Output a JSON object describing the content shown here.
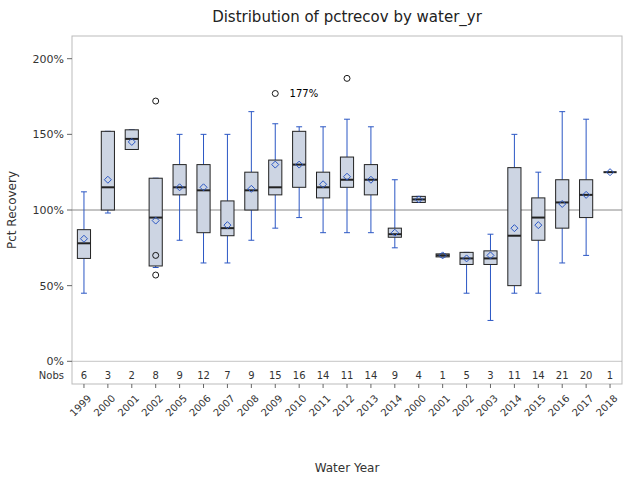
{
  "chart_data": {
    "type": "box",
    "title": "Distribution of pctrecov by water_yr",
    "x_label": "Water Year",
    "y_label": "Pct Recovery",
    "categories": [
      "1999",
      "2000",
      "2001",
      "2002",
      "2005",
      "2006",
      "2007",
      "2008",
      "2009",
      "2010",
      "2011",
      "2012",
      "2013",
      "2014",
      "2000",
      "2001",
      "2002",
      "2003",
      "2014",
      "2015",
      "2016",
      "2017",
      "2018"
    ],
    "boxes": [
      {
        "q1": 68,
        "median": 78,
        "q3": 87,
        "mean": 81,
        "whislo": 45,
        "whishi": 112,
        "fliers": []
      },
      {
        "q1": 100,
        "median": 115,
        "q3": 152,
        "mean": 120,
        "whislo": 98,
        "whishi": 152,
        "fliers": []
      },
      {
        "q1": 140,
        "median": 147,
        "q3": 153,
        "mean": 145,
        "whislo": 140,
        "whishi": 153,
        "fliers": []
      },
      {
        "q1": 63,
        "median": 95,
        "q3": 121,
        "mean": 93,
        "whislo": 62,
        "whishi": 121,
        "fliers": [
          172,
          70,
          57
        ]
      },
      {
        "q1": 110,
        "median": 115,
        "q3": 130,
        "mean": 115,
        "whislo": 80,
        "whishi": 150,
        "fliers": []
      },
      {
        "q1": 85,
        "median": 113,
        "q3": 130,
        "mean": 115,
        "whislo": 65,
        "whishi": 150,
        "fliers": []
      },
      {
        "q1": 83,
        "median": 88,
        "q3": 106,
        "mean": 90,
        "whislo": 65,
        "whishi": 150,
        "fliers": []
      },
      {
        "q1": 100,
        "median": 113,
        "q3": 125,
        "mean": 114,
        "whislo": 80,
        "whishi": 165,
        "fliers": []
      },
      {
        "q1": 110,
        "median": 115,
        "q3": 133,
        "mean": 130,
        "whislo": 88,
        "whishi": 157,
        "fliers": [
          177
        ]
      },
      {
        "q1": 115,
        "median": 130,
        "q3": 152,
        "mean": 130,
        "whislo": 95,
        "whishi": 155,
        "fliers": []
      },
      {
        "q1": 108,
        "median": 115,
        "q3": 125,
        "mean": 117,
        "whislo": 85,
        "whishi": 155,
        "fliers": []
      },
      {
        "q1": 115,
        "median": 120,
        "q3": 135,
        "mean": 122,
        "whislo": 85,
        "whishi": 160,
        "fliers": [
          187
        ]
      },
      {
        "q1": 110,
        "median": 120,
        "q3": 130,
        "mean": 120,
        "whislo": 85,
        "whishi": 155,
        "fliers": []
      },
      {
        "q1": 82,
        "median": 84,
        "q3": 88,
        "mean": 85,
        "whislo": 75,
        "whishi": 120,
        "fliers": []
      },
      {
        "q1": 105,
        "median": 107,
        "q3": 109,
        "mean": 107,
        "whislo": 105,
        "whishi": 109,
        "fliers": []
      },
      {
        "q1": 69,
        "median": 70,
        "q3": 71,
        "mean": 70,
        "whislo": 69,
        "whishi": 71,
        "fliers": []
      },
      {
        "q1": 64,
        "median": 68,
        "q3": 72,
        "mean": 68,
        "whislo": 45,
        "whishi": 72,
        "fliers": []
      },
      {
        "q1": 64,
        "median": 68,
        "q3": 73,
        "mean": 70,
        "whislo": 27,
        "whishi": 84,
        "fliers": []
      },
      {
        "q1": 50,
        "median": 83,
        "q3": 128,
        "mean": 88,
        "whislo": 45,
        "whishi": 150,
        "fliers": []
      },
      {
        "q1": 80,
        "median": 95,
        "q3": 108,
        "mean": 90,
        "whislo": 45,
        "whishi": 125,
        "fliers": []
      },
      {
        "q1": 88,
        "median": 105,
        "q3": 120,
        "mean": 104,
        "whislo": 65,
        "whishi": 165,
        "fliers": []
      },
      {
        "q1": 95,
        "median": 110,
        "q3": 120,
        "mean": 110,
        "whislo": 70,
        "whishi": 160,
        "fliers": []
      },
      {
        "q1": 125,
        "median": 125,
        "q3": 125,
        "mean": 125,
        "whislo": 125,
        "whishi": 125,
        "fliers": []
      }
    ],
    "nobs_label": "Nobs",
    "nobs": [
      6,
      3,
      2,
      8,
      9,
      12,
      7,
      9,
      15,
      16,
      14,
      11,
      14,
      9,
      4,
      1,
      5,
      3,
      11,
      14,
      21,
      20,
      1
    ],
    "annotations": [
      {
        "text": "177%",
        "box": 8,
        "value": 177
      }
    ],
    "reference_line": 100,
    "separator_line": 0,
    "color": "#cdd5e3",
    "ylim": [
      -15,
      215
    ],
    "yticks": [
      {
        "value": 0,
        "label": "0%"
      },
      {
        "value": 50,
        "label": "50%"
      },
      {
        "value": 100,
        "label": "100%"
      },
      {
        "value": 150,
        "label": "150%"
      },
      {
        "value": 200,
        "label": "200%"
      }
    ],
    "grid": false
  }
}
